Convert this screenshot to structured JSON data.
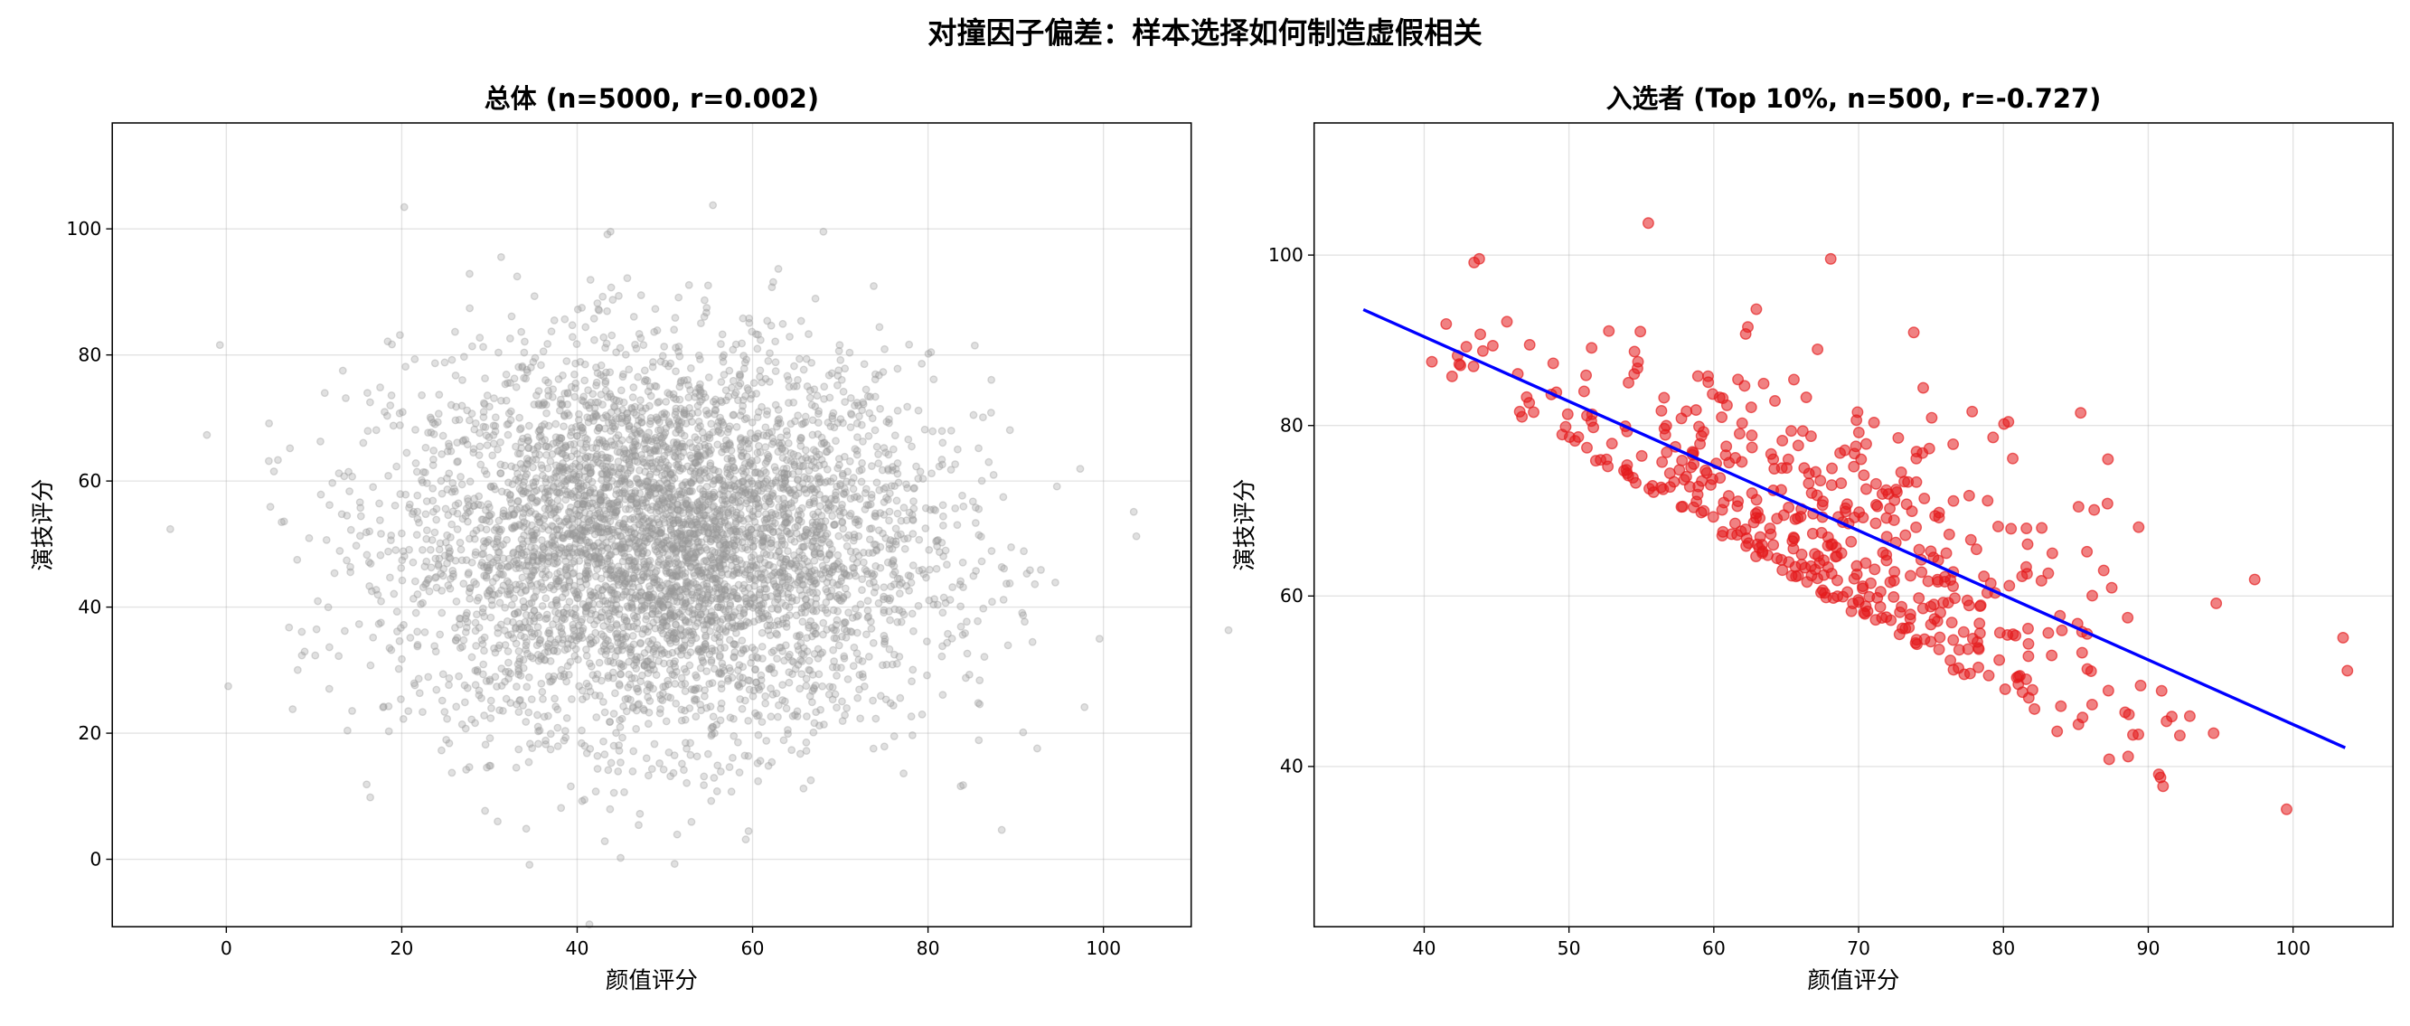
{
  "suptitle": "对撞因子偏差：样本选择如何制造虚假相关",
  "chart_data": [
    {
      "type": "scatter",
      "title": "总体 (n=5000, r=0.002)",
      "xlabel": "颜值评分",
      "ylabel": "演技评分",
      "xlim": [
        -13,
        110
      ],
      "ylim": [
        -10.7,
        116.8
      ],
      "xticks": [
        0,
        20,
        40,
        60,
        80,
        100
      ],
      "yticks": [
        0,
        20,
        40,
        60,
        80,
        100
      ],
      "grid": true,
      "n": 5000,
      "r": 0.002,
      "x_mean": 50,
      "x_sd": 15,
      "y_mean": 50,
      "y_sd": 15,
      "marker_color": "#999999",
      "marker_alpha": 0.3
    },
    {
      "type": "scatter",
      "title": "入选者 (Top 10%, n=500, r=-0.727)",
      "xlabel": "颜值评分",
      "ylabel": "演技评分",
      "xlim": [
        32.4,
        106.9
      ],
      "ylim": [
        21.2,
        115.5
      ],
      "xticks": [
        40,
        50,
        60,
        70,
        80,
        90,
        100
      ],
      "yticks": [
        40,
        60,
        80,
        100
      ],
      "grid": true,
      "n": 500,
      "r": -0.727,
      "selection": "top 10% of 颜值评分 + 演技评分",
      "marker_color": "#e31a1c",
      "marker_alpha": 0.55,
      "fit_line": {
        "color": "#0000ff",
        "x": [
          35.8,
          103.6
        ],
        "y": [
          93.6,
          42.2
        ]
      }
    }
  ]
}
